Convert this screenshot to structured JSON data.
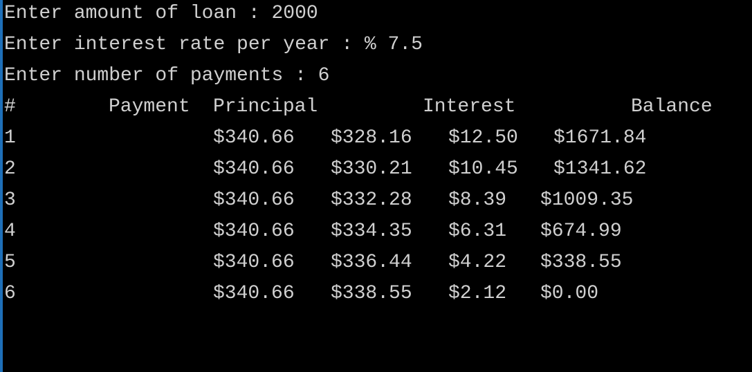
{
  "prompts": {
    "loan": "Enter amount of loan : 2000",
    "rate": "Enter interest rate per year : % 7.5",
    "payments": "Enter number of payments : 6"
  },
  "table": {
    "headers": {
      "num": "#",
      "payment": "Payment",
      "principal": "Principal",
      "interest": "Interest",
      "balance": "Balance"
    },
    "rows": [
      {
        "num": "1",
        "payment": "$340.66",
        "principal": "$328.16",
        "interest": "$12.50",
        "balance": "$1671.84"
      },
      {
        "num": "2",
        "payment": "$340.66",
        "principal": "$330.21",
        "interest": "$10.45",
        "balance": "$1341.62"
      },
      {
        "num": "3",
        "payment": "$340.66",
        "principal": "$332.28",
        "interest": "$8.39",
        "balance": "$1009.35"
      },
      {
        "num": "4",
        "payment": "$340.66",
        "principal": "$334.35",
        "interest": "$6.31",
        "balance": "$674.99"
      },
      {
        "num": "5",
        "payment": "$340.66",
        "principal": "$336.44",
        "interest": "$4.22",
        "balance": "$338.55"
      },
      {
        "num": "6",
        "payment": "$340.66",
        "principal": "$338.55",
        "interest": "$2.12",
        "balance": "$0.00"
      }
    ]
  },
  "colors": {
    "background": "#000000",
    "text": "#d0d0d0",
    "edge": "#1e6fb8"
  }
}
